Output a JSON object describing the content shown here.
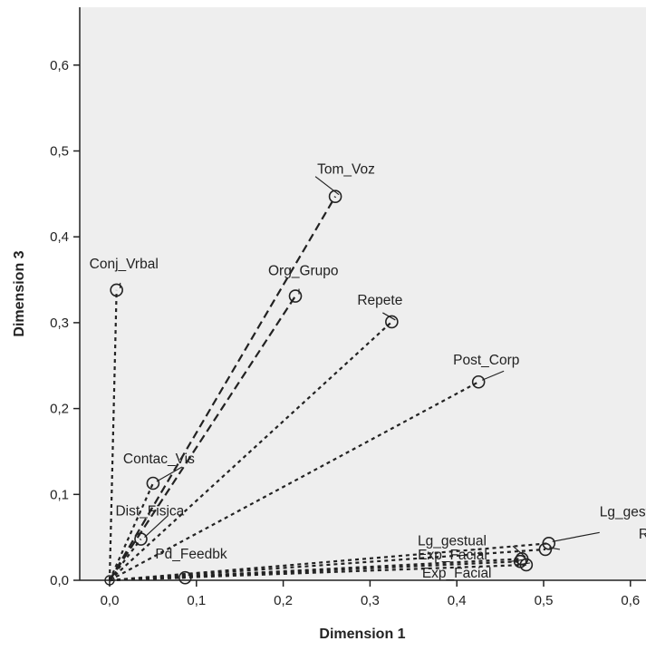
{
  "chart_data": {
    "type": "scatter",
    "xlabel": "Dimension 1",
    "ylabel": "Dimension 3",
    "xlim": [
      -0.035,
      0.62
    ],
    "ylim": [
      0,
      0.66
    ],
    "x_ticks": [
      "0,0",
      "0,1",
      "0,2",
      "0,3",
      "0,4",
      "0,5",
      "0,6"
    ],
    "y_ticks": [
      "0,0",
      "0,1",
      "0,2",
      "0,3",
      "0,4",
      "0,5",
      "0,6"
    ],
    "grid": false,
    "background": "#eeeeee",
    "line_style": "dashed vectors from origin",
    "points": [
      {
        "label": "Tom_Voz",
        "x": 0.26,
        "y": 0.447
      },
      {
        "label": "Conj_Vrbal",
        "x": 0.008,
        "y": 0.338
      },
      {
        "label": "Org_Grupo",
        "x": 0.214,
        "y": 0.331
      },
      {
        "label": "Repete",
        "x": 0.325,
        "y": 0.301
      },
      {
        "label": "Post_Corp",
        "x": 0.425,
        "y": 0.231
      },
      {
        "label": "Contac_Vis",
        "x": 0.05,
        "y": 0.113
      },
      {
        "label": "Dist_Fisica",
        "x": 0.036,
        "y": 0.048
      },
      {
        "label": "Pd_Feedbk",
        "x": 0.087,
        "y": 0.003
      },
      {
        "label": "Lg_gestual",
        "x": 0.506,
        "y": 0.043
      },
      {
        "label": "Lg_gestual",
        "x": 0.475,
        "y": 0.025
      },
      {
        "label": "Ritmo",
        "x": 0.502,
        "y": 0.036
      },
      {
        "label": "Exp_Facial",
        "x": 0.473,
        "y": 0.022
      },
      {
        "label": "Exp_Facial",
        "x": 0.48,
        "y": 0.018
      }
    ]
  }
}
